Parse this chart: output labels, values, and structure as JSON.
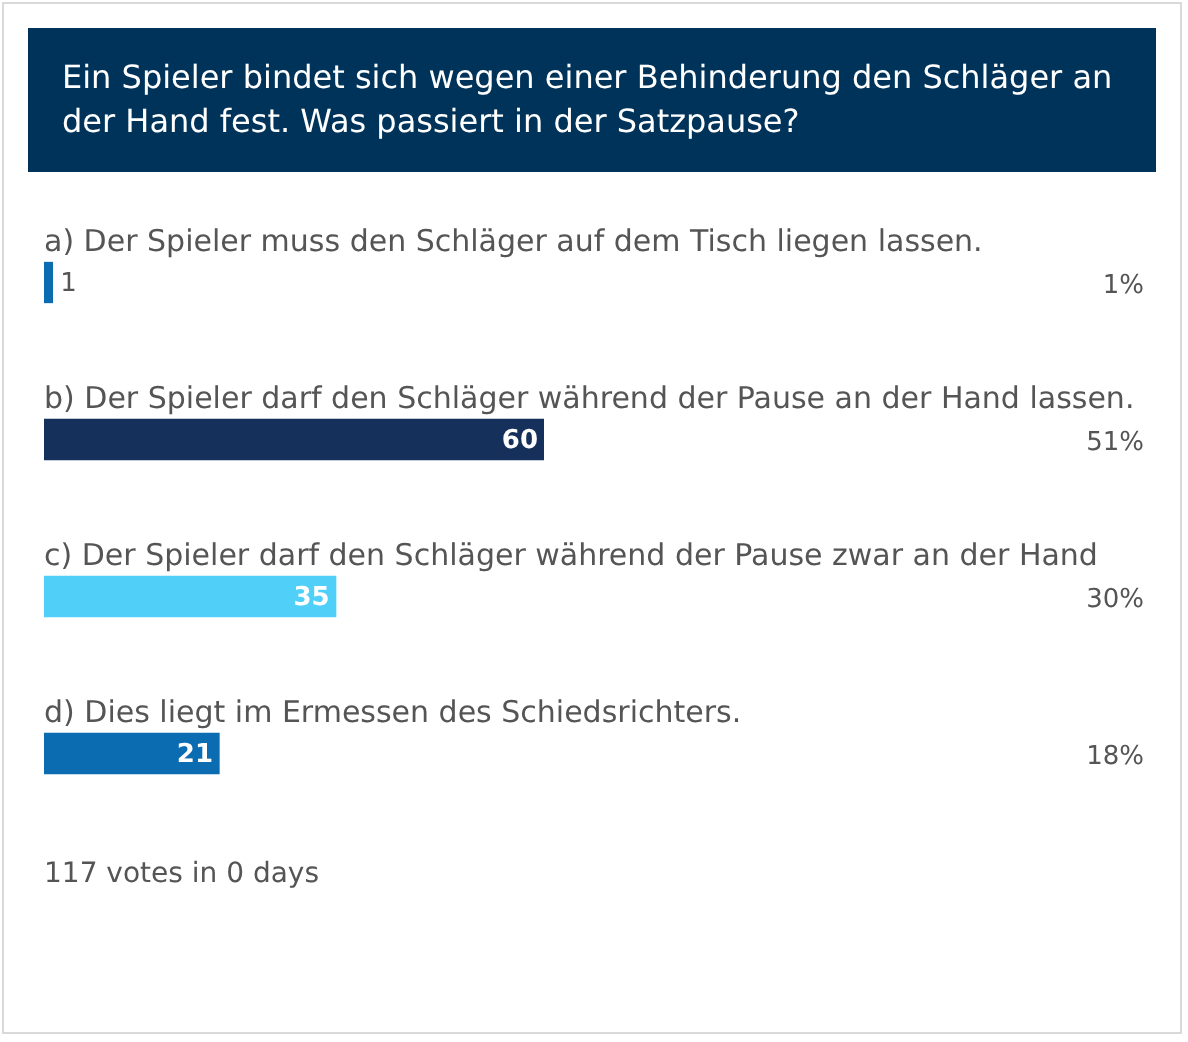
{
  "chart_data": {
    "type": "bar",
    "orientation": "horizontal",
    "title": "Ein Spieler bindet sich wegen einer Behinderung den Schläger an der Hand fest. Was passiert in der Satzpause?",
    "categories": [
      "a) Der Spieler muss den Schläger auf dem Tisch liegen lassen.",
      "b) Der Spieler darf den Schläger während der Pause an der Hand lassen.",
      "c) Der Spieler darf den Schläger während der Pause zwar an der Hand",
      "d) Dies liegt im Ermessen des Schiedsrichters."
    ],
    "values": [
      1,
      60,
      35,
      21
    ],
    "colors": [
      "#0b6cb1",
      "#15315b",
      "#50d0f8",
      "#0b6cb1"
    ],
    "data_labels": true,
    "tick_labels": "y",
    "annotations": [
      "1%",
      "51%",
      "30%",
      "18%",
      "117 votes in 0 days"
    ]
  }
}
